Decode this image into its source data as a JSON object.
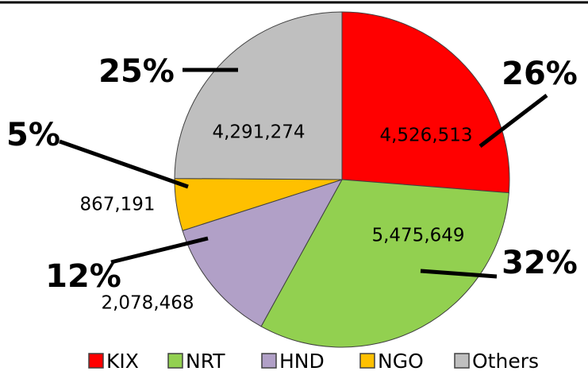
{
  "chart_data": {
    "type": "pie",
    "categories": [
      "KIX",
      "NRT",
      "HND",
      "NGO",
      "Others"
    ],
    "values": [
      4526513,
      5475649,
      2078468,
      867191,
      4291274
    ],
    "value_labels": [
      "4,526,513",
      "5,475,649",
      "2,078,468",
      "867,191",
      "4,291,274"
    ],
    "percentages": [
      {
        "value": 26,
        "label": "26%"
      },
      {
        "value": 32,
        "label": "32%"
      },
      {
        "value": 12,
        "label": "12%"
      },
      {
        "value": 5,
        "label": "5%"
      },
      {
        "value": 25,
        "label": "25%"
      }
    ],
    "colors": [
      "#ff0000",
      "#92d050",
      "#b1a0c7",
      "#ffc000",
      "#bfbfbf"
    ],
    "legend": "bottom"
  }
}
